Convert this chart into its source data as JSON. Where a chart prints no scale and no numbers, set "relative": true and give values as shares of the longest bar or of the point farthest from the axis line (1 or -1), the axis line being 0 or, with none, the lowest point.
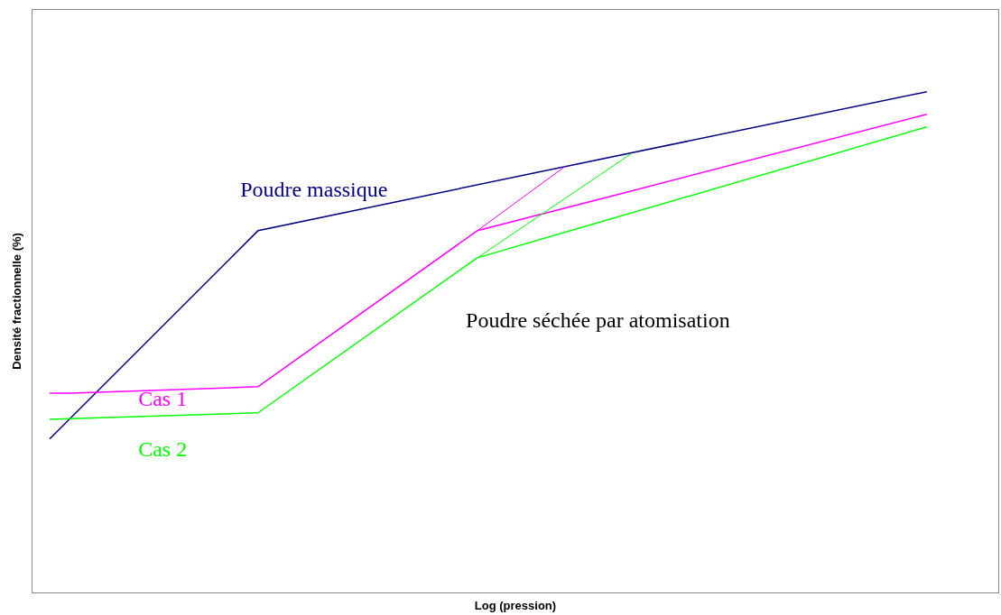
{
  "chart_data": {
    "type": "line",
    "relative": true,
    "xlabel": "Log (pression)",
    "ylabel": "Densité fractionnelle (%)",
    "grid": false,
    "legend": false,
    "marker": "none",
    "line_style": "solid",
    "categories": [
      null,
      null,
      null,
      null,
      null,
      null,
      null,
      null,
      null,
      null,
      null,
      null,
      null,
      null,
      null,
      null,
      null,
      null,
      null,
      null,
      null,
      null,
      null,
      null,
      null,
      null,
      null,
      null,
      null,
      null,
      null,
      null,
      null,
      null,
      null,
      null,
      null,
      null,
      null,
      null,
      null,
      null,
      null,
      null,
      null,
      null,
      null,
      null,
      null,
      null,
      null,
      null,
      null,
      null,
      null,
      null,
      null,
      null,
      null,
      null,
      null,
      null,
      null,
      null,
      null,
      null,
      null,
      null,
      null,
      null,
      null,
      null,
      null,
      null,
      null,
      null,
      null,
      null,
      null,
      null,
      null
    ],
    "series": [
      {
        "name": "Poudre massique",
        "color": "#000080",
        "values": [
          0.308,
          null,
          null,
          null,
          null,
          null,
          null,
          null,
          null,
          null,
          null,
          null,
          null,
          null,
          null,
          null,
          null,
          null,
          null,
          0.723,
          null,
          null,
          null,
          null,
          null,
          null,
          null,
          null,
          null,
          null,
          null,
          null,
          null,
          null,
          null,
          null,
          null,
          null,
          null,
          null,
          null,
          null,
          null,
          null,
          null,
          null,
          null,
          0.851,
          null,
          null,
          null,
          null,
          null,
          null,
          null,
          null,
          null,
          null,
          null,
          null,
          null,
          null,
          null,
          null,
          null,
          null,
          null,
          null,
          null,
          null,
          null,
          null,
          null,
          null,
          null,
          null,
          null,
          null,
          null,
          null,
          1
        ]
      },
      {
        "name": "Cas 1",
        "color": "#ff00ff",
        "values": [
          0.399,
          null,
          0.399,
          null,
          null,
          null,
          null,
          null,
          null,
          null,
          null,
          null,
          null,
          null,
          null,
          null,
          null,
          null,
          null,
          0.412,
          null,
          null,
          null,
          null,
          null,
          null,
          null,
          null,
          null,
          null,
          null,
          null,
          null,
          null,
          null,
          null,
          null,
          null,
          null,
          0.723,
          null,
          null,
          null,
          null,
          null,
          null,
          null,
          null,
          null,
          null,
          null,
          null,
          null,
          0.802,
          null,
          null,
          null,
          null,
          null,
          null,
          null,
          null,
          null,
          null,
          null,
          null,
          null,
          null,
          null,
          null,
          null,
          null,
          null,
          null,
          null,
          null,
          null,
          null,
          null,
          null,
          0.955
        ]
      },
      {
        "name": "Cas 2",
        "color": "#00ff00",
        "values": [
          0.347,
          null,
          null,
          null,
          null,
          null,
          null,
          null,
          null,
          null,
          null,
          null,
          null,
          null,
          null,
          null,
          null,
          null,
          null,
          0.36,
          null,
          null,
          null,
          null,
          null,
          null,
          null,
          null,
          null,
          null,
          null,
          null,
          null,
          null,
          null,
          null,
          null,
          null,
          null,
          0.669,
          null,
          null,
          null,
          null,
          null,
          null,
          null,
          null,
          null,
          null,
          null,
          null,
          null,
          null,
          null,
          null,
          null,
          null,
          null,
          null,
          null,
          null,
          null,
          null,
          null,
          null,
          null,
          null,
          null,
          null,
          null,
          null,
          null,
          null,
          null,
          null,
          null,
          null,
          null,
          null,
          0.93
        ]
      },
      {
        "color": "#ff00ff",
        "values": [
          null,
          null,
          null,
          null,
          null,
          null,
          null,
          null,
          null,
          null,
          null,
          null,
          null,
          null,
          null,
          null,
          null,
          null,
          null,
          null,
          null,
          null,
          null,
          null,
          null,
          null,
          null,
          null,
          null,
          null,
          null,
          null,
          null,
          null,
          null,
          null,
          null,
          null,
          null,
          0.723,
          null,
          null,
          null,
          null,
          null,
          null,
          null,
          0.851,
          null,
          null,
          null,
          null,
          null,
          null,
          null,
          null,
          null,
          null,
          null,
          null,
          null,
          null,
          null,
          null,
          null,
          null,
          null,
          null,
          null,
          null,
          null,
          null,
          null,
          null,
          null,
          null,
          null,
          null,
          null,
          null,
          null
        ]
      },
      {
        "color": "#00ff00",
        "values": [
          null,
          null,
          null,
          null,
          null,
          null,
          null,
          null,
          null,
          null,
          null,
          null,
          null,
          null,
          null,
          null,
          null,
          null,
          null,
          null,
          null,
          null,
          null,
          null,
          null,
          null,
          null,
          null,
          null,
          null,
          null,
          null,
          null,
          null,
          null,
          null,
          null,
          null,
          null,
          0.669,
          null,
          null,
          null,
          null,
          null,
          null,
          null,
          null,
          null,
          null,
          null,
          null,
          null,
          0.876,
          null,
          null,
          null,
          null,
          null,
          null,
          null,
          null,
          null,
          null,
          null,
          null,
          null,
          null,
          null,
          null,
          null,
          null,
          null,
          null,
          null,
          null,
          null,
          null,
          null,
          null,
          null
        ]
      }
    ],
    "annotations": [
      "Poudre séchée par atomisation"
    ]
  }
}
